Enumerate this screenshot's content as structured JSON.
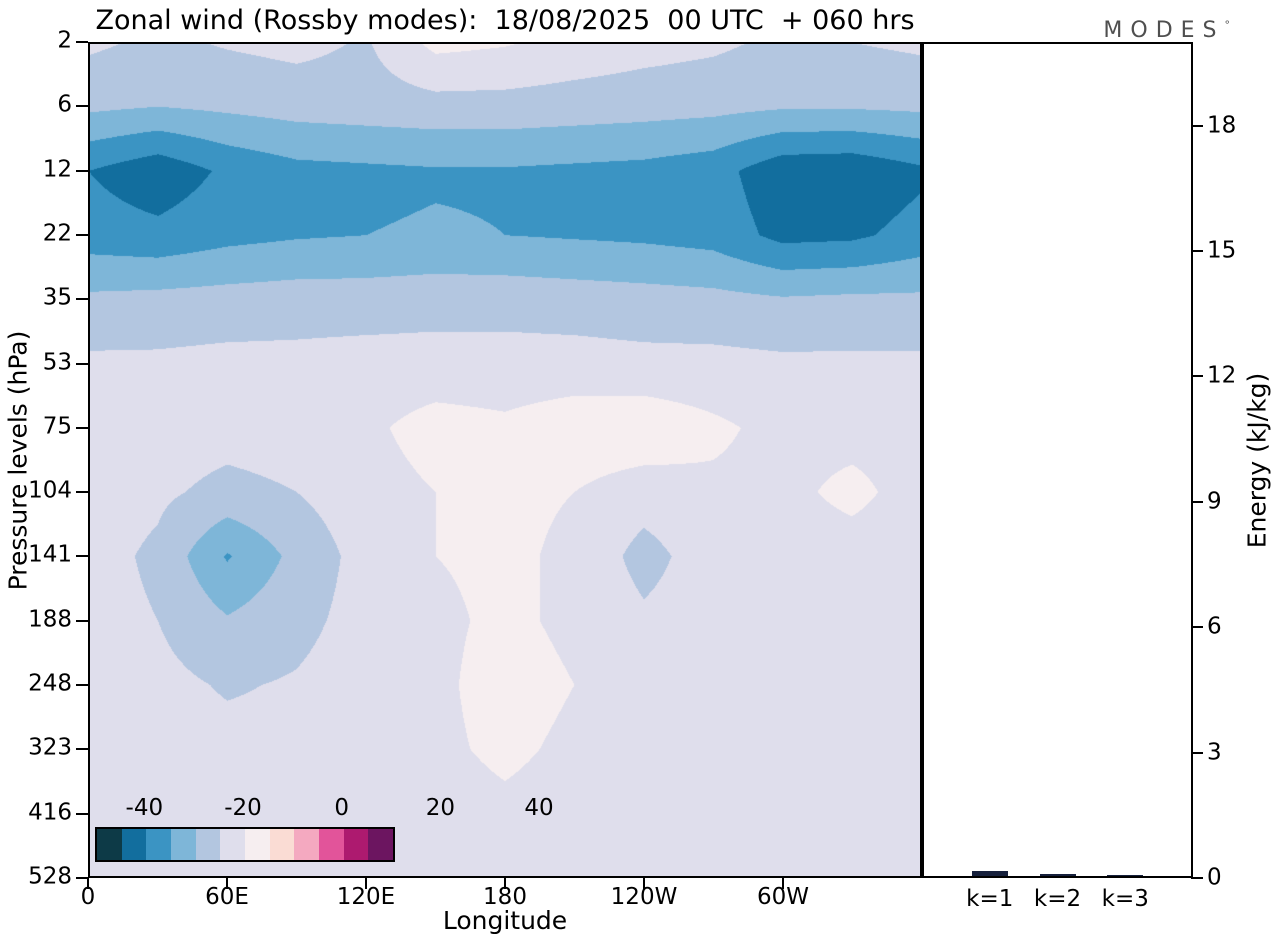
{
  "header": {
    "title": "Zonal wind (Rossby modes):  18/08/2025  00 UTC  + 060 hrs",
    "logo": "MODES",
    "logo_mark": "°"
  },
  "axes": {
    "pressure": {
      "label": "Pressure levels (hPa)",
      "ticks": [
        "2",
        "6",
        "12",
        "22",
        "35",
        "53",
        "75",
        "104",
        "141",
        "188",
        "248",
        "323",
        "416",
        "528"
      ]
    },
    "longitude": {
      "label": "Longitude",
      "ticks": [
        "0",
        "60E",
        "120E",
        "180",
        "120W",
        "60W"
      ],
      "values": [
        0,
        60,
        120,
        180,
        240,
        300
      ],
      "range": [
        0,
        360
      ]
    },
    "energy": {
      "label": "Energy (kJ/kg)",
      "ticks": [
        "0",
        "3",
        "6",
        "9",
        "12",
        "15",
        "18"
      ],
      "values": [
        0,
        3,
        6,
        9,
        12,
        15,
        18
      ],
      "range": [
        0,
        20
      ]
    }
  },
  "colorbar": {
    "tick_labels": [
      "-40",
      "-20",
      "0",
      "20",
      "40"
    ],
    "levels": [
      -60,
      -50,
      -40,
      -30,
      -20,
      -10,
      0,
      10,
      20,
      30,
      40,
      50,
      60
    ],
    "colors": [
      "#0d3a47",
      "#126e9e",
      "#3b94c3",
      "#7eb6d8",
      "#b3c6e0",
      "#dfdeec",
      "#f6eef0",
      "#fadcd4",
      "#f4a9c0",
      "#e2549a",
      "#ad1a6f",
      "#6c1560"
    ]
  },
  "chart_data": [
    {
      "type": "heatmap",
      "title": "Zonal wind (Rossby modes): 18/08/2025 00 UTC + 060 hrs",
      "xlabel": "Longitude",
      "ylabel": "Pressure levels (hPa)",
      "x_deg": [
        0,
        30,
        60,
        90,
        120,
        150,
        180,
        210,
        240,
        270,
        300,
        330,
        360
      ],
      "y_hpa": [
        2,
        6,
        12,
        22,
        35,
        53,
        75,
        104,
        141,
        188,
        248,
        323,
        416,
        528
      ],
      "zlim": [
        -60,
        60
      ],
      "z": [
        [
          -8,
          -12,
          -9,
          -7,
          -11,
          3,
          1,
          -3,
          -6,
          -8,
          -12,
          -10,
          -8
        ],
        [
          -18,
          -20,
          -18,
          -16,
          -15,
          -14,
          -14,
          -15,
          -16,
          -17,
          -19,
          -19,
          -18
        ],
        [
          -40,
          -47,
          -38,
          -33,
          -32,
          -31,
          -31,
          -32,
          -33,
          -36,
          -47,
          -48,
          -42
        ],
        [
          -35,
          -37,
          -33,
          -31,
          -30,
          -29,
          -30,
          -31,
          -32,
          -34,
          -43,
          -42,
          -36
        ],
        [
          -18,
          -17,
          -16,
          -15,
          -15,
          -14,
          -14,
          -15,
          -16,
          -17,
          -19,
          -18,
          -18
        ],
        [
          -8,
          -8,
          -7,
          -7,
          -6,
          -6,
          -6,
          -6,
          -7,
          -7,
          -8,
          -8,
          -8
        ],
        [
          -4,
          -5,
          -6,
          -5,
          -2,
          4,
          2,
          6,
          7,
          2,
          -3,
          -4,
          -4
        ],
        [
          -5,
          -8,
          -13,
          -10,
          -4,
          0,
          1,
          0,
          -5,
          -2,
          -3,
          3,
          -5
        ],
        [
          -6,
          -12,
          -31,
          -17,
          -6,
          0,
          1,
          -1,
          -14,
          -4,
          -5,
          -5,
          -6
        ],
        [
          -6,
          -10,
          -19,
          -13,
          -6,
          -1,
          1,
          -1,
          -8,
          -4,
          -5,
          -5,
          -6
        ],
        [
          -5,
          -7,
          -11,
          -9,
          -5,
          -1,
          2,
          0,
          -4,
          -3,
          -4,
          -5,
          -5
        ],
        [
          -5,
          -6,
          -7,
          -7,
          -4,
          -1,
          1,
          -1,
          -3,
          -4,
          -5,
          -5,
          -5
        ],
        [
          -5,
          -5,
          -6,
          -5,
          -4,
          -2,
          -1,
          -2,
          -4,
          -4,
          -5,
          -5,
          -5
        ],
        [
          -5,
          -5,
          -5,
          -4,
          -4,
          -2,
          -2,
          -2,
          -4,
          -4,
          -5,
          -5,
          -5
        ]
      ]
    },
    {
      "type": "bar",
      "categories": [
        "k=1",
        "k=2",
        "k=3"
      ],
      "values": [
        0.12,
        0.04,
        0.03
      ],
      "ylabel": "Energy (kJ/kg)",
      "ylim": [
        0,
        20
      ],
      "bar_color": "#16203c"
    }
  ]
}
